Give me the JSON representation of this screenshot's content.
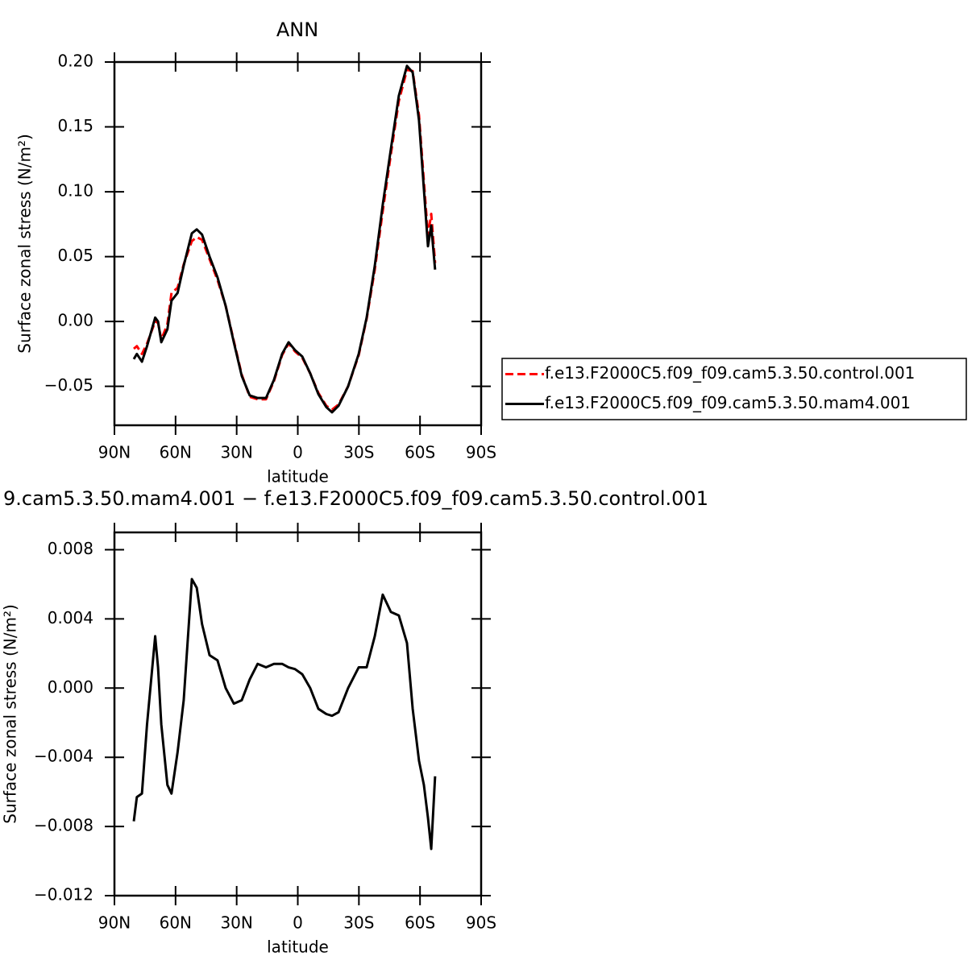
{
  "chart_data": [
    {
      "type": "line",
      "title": "ANN",
      "y_label": "Surface zonal stress (N/m²)",
      "x_label": "latitude",
      "xlim": [
        90,
        -90
      ],
      "xticks": [
        {
          "value": 90,
          "label": "90N"
        },
        {
          "value": 60,
          "label": "60N"
        },
        {
          "value": 30,
          "label": "30N"
        },
        0,
        {
          "value": -30,
          "label": "30S"
        },
        {
          "value": -60,
          "label": "60S"
        },
        {
          "value": -90,
          "label": "90S"
        }
      ],
      "ylim": [
        -0.08,
        0.2
      ],
      "yticks": [
        {
          "value": -0.05,
          "label": "−0.05"
        },
        {
          "value": 0,
          "label": "0.00"
        },
        {
          "value": 0.05,
          "label": "0.05"
        },
        {
          "value": 0.1,
          "label": "0.10"
        },
        {
          "value": 0.15,
          "label": "0.15"
        },
        {
          "value": 0.2,
          "label": "0.20"
        }
      ],
      "legend": "right",
      "x": [
        80.5,
        79,
        76.5,
        74,
        70,
        68.6,
        67,
        64,
        62,
        59,
        56,
        52,
        49.6,
        47,
        43.3,
        39.4,
        35.4,
        31.4,
        27.5,
        23.6,
        19.7,
        15.6,
        11.7,
        7.7,
        4.5,
        1.4,
        -2.2,
        -6.1,
        -10.1,
        -14,
        -16.8,
        -20,
        -24.7,
        -29.9,
        -33.8,
        -37.8,
        -41.7,
        -45.7,
        -49.6,
        -53.6,
        -56.4,
        -59.5,
        -61.9,
        -63.9,
        -65.5,
        -67.4
      ],
      "series": [
        {
          "name": "f.e13.F2000C5.f09_f09.cam5.3.50.control.001",
          "color": "#ff0000",
          "linestyle": "dashed",
          "values": [
            -0.021,
            -0.019,
            -0.025,
            -0.017,
            0.0,
            -0.001,
            -0.014,
            -0.002,
            0.022,
            0.026,
            0.044,
            0.062,
            0.065,
            0.063,
            0.048,
            0.032,
            0.012,
            -0.015,
            -0.041,
            -0.058,
            -0.06,
            -0.06,
            -0.046,
            -0.026,
            -0.017,
            -0.023,
            -0.028,
            -0.04,
            -0.055,
            -0.065,
            -0.068,
            -0.064,
            -0.05,
            -0.026,
            0.002,
            0.04,
            0.085,
            0.129,
            0.17,
            0.194,
            0.193,
            0.159,
            0.108,
            0.066,
            0.083,
            0.045
          ]
        },
        {
          "name": "f.e13.F2000C5.f09_f09.cam5.3.50.mam4.001",
          "color": "#000000",
          "linestyle": "solid",
          "values": [
            -0.029,
            -0.025,
            -0.031,
            -0.019,
            0.003,
            0,
            -0.016,
            -0.006,
            0.016,
            0.022,
            0.043,
            0.068,
            0.071,
            0.067,
            0.05,
            0.034,
            0.012,
            -0.016,
            -0.042,
            -0.057,
            -0.059,
            -0.059,
            -0.045,
            -0.025,
            -0.016,
            -0.022,
            -0.027,
            -0.04,
            -0.056,
            -0.066,
            -0.07,
            -0.065,
            -0.05,
            -0.025,
            0.003,
            0.043,
            0.09,
            0.133,
            0.174,
            0.197,
            0.192,
            0.155,
            0.102,
            0.058,
            0.074,
            0.04
          ]
        }
      ]
    },
    {
      "type": "line",
      "title": "9.cam5.3.50.mam4.001 − f.e13.F2000C5.f09_f09.cam5.3.50.control.001",
      "y_label": "Surface zonal stress (N/m²)",
      "x_label": "latitude",
      "xlim": [
        90,
        -90
      ],
      "xticks": [
        {
          "value": 90,
          "label": "90N"
        },
        {
          "value": 60,
          "label": "60N"
        },
        {
          "value": 30,
          "label": "30N"
        },
        0,
        {
          "value": -30,
          "label": "30S"
        },
        {
          "value": -60,
          "label": "60S"
        },
        {
          "value": -90,
          "label": "90S"
        }
      ],
      "ylim": [
        -0.012,
        0.009
      ],
      "yticks": [
        {
          "value": -0.012,
          "label": "−0.012"
        },
        {
          "value": -0.008,
          "label": "−0.008"
        },
        {
          "value": -0.004,
          "label": "−0.004"
        },
        {
          "value": 0,
          "label": "0.000"
        },
        {
          "value": 0.004,
          "label": "0.004"
        },
        {
          "value": 0.008,
          "label": "0.008"
        }
      ],
      "x": [
        80.5,
        79,
        76.5,
        74,
        70,
        68.6,
        67,
        64,
        62,
        59,
        56,
        52,
        49.6,
        47,
        43.3,
        39.4,
        35.4,
        31.4,
        27.5,
        23.6,
        19.7,
        15.6,
        11.7,
        7.7,
        4.5,
        1.4,
        -2.2,
        -6.1,
        -10.1,
        -14,
        -16.8,
        -20,
        -24.7,
        -29.9,
        -33.8,
        -37.8,
        -41.7,
        -45.7,
        -49.6,
        -53.6,
        -56.4,
        -59.5,
        -61.9,
        -63.9,
        -65.5,
        -67.4
      ],
      "series": [
        {
          "color": "#000000",
          "linestyle": "solid",
          "values": [
            -0.0077,
            -0.0063,
            -0.0061,
            -0.0021,
            0.003,
            0.0012,
            -0.0021,
            -0.0056,
            -0.0061,
            -0.0037,
            -0.0007,
            0.0063,
            0.0058,
            0.0037,
            0.0019,
            0.0016,
            0,
            -0.0009,
            -0.0007,
            0.0005,
            0.0014,
            0.0012,
            0.0014,
            0.0014,
            0.0012,
            0.0011,
            0.0008,
            0,
            -0.0012,
            -0.0015,
            -0.0016,
            -0.0014,
            0,
            0.0012,
            0.0012,
            0.003,
            0.0054,
            0.0044,
            0.0042,
            0.0026,
            -0.0012,
            -0.0042,
            -0.0056,
            -0.0075,
            -0.0093,
            -0.0051
          ]
        }
      ]
    }
  ]
}
